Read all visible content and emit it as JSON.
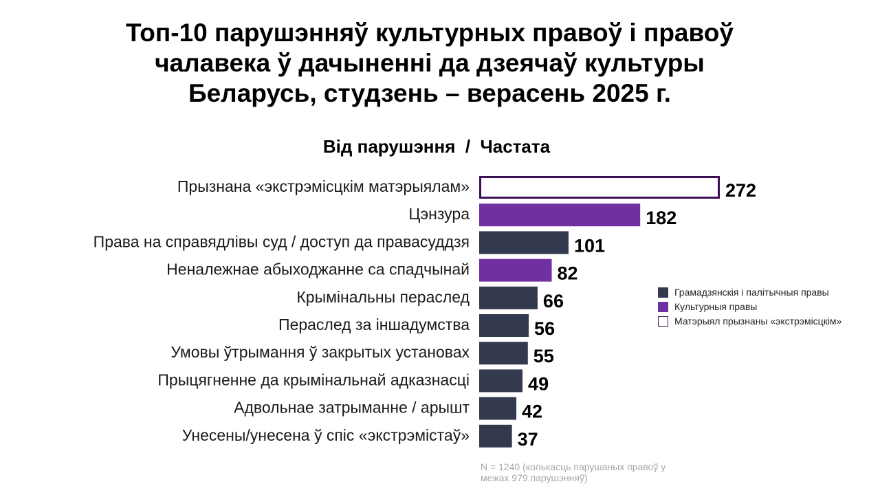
{
  "title_lines": [
    "Топ-10 парушэнняў культурных правоў і правоў",
    "чалавека ў дачыненні да дзеячаў культуры",
    "Беларусь, студзень – верасень 2025 г."
  ],
  "subtitle": "Від парушэння  /  Частата",
  "colors": {
    "civil": "#333a4d",
    "cultural": "#7030a0",
    "extremist_fill": "#ffffff",
    "extremist_border": "#3d0f54"
  },
  "legend": [
    {
      "key": "civil",
      "label": "Грамадзянскія і палітычныя правы"
    },
    {
      "key": "cultural",
      "label": "Культурныя правы"
    },
    {
      "key": "extremist",
      "label": "Матэрыял прызнаны «экстрэмісцкім»"
    }
  ],
  "footnote": "N = 1240 (колькасць парушаных правоў у межах 979 парушэнняў)",
  "chart_data": {
    "type": "bar",
    "orientation": "horizontal",
    "title": "Від парушэння  /  Частата",
    "categories": [
      "Прызнана «экстрэмісцкім матэрыялам»",
      "Цэнзура",
      "Права на справядлівы суд / доступ да правасуддзя",
      "Неналежнае абыходжанне са спадчынай",
      "Крымінальны пераслед",
      "Пераслед за іншадумства",
      "Умовы ўтрымання ў закрытых установах",
      "Прыцягненне да крымінальнай адказнасці",
      "Адвольнае затрыманне / арышт",
      "Унесены/унесена ў спіс «экстрэмістаў»"
    ],
    "values": [
      272,
      182,
      101,
      82,
      66,
      56,
      55,
      49,
      42,
      37
    ],
    "groups": [
      "extremist",
      "cultural",
      "civil",
      "cultural",
      "civil",
      "civil",
      "civil",
      "civil",
      "civil",
      "civil"
    ],
    "xlim": [
      0,
      272
    ],
    "grid": false,
    "legend_position": "right"
  }
}
